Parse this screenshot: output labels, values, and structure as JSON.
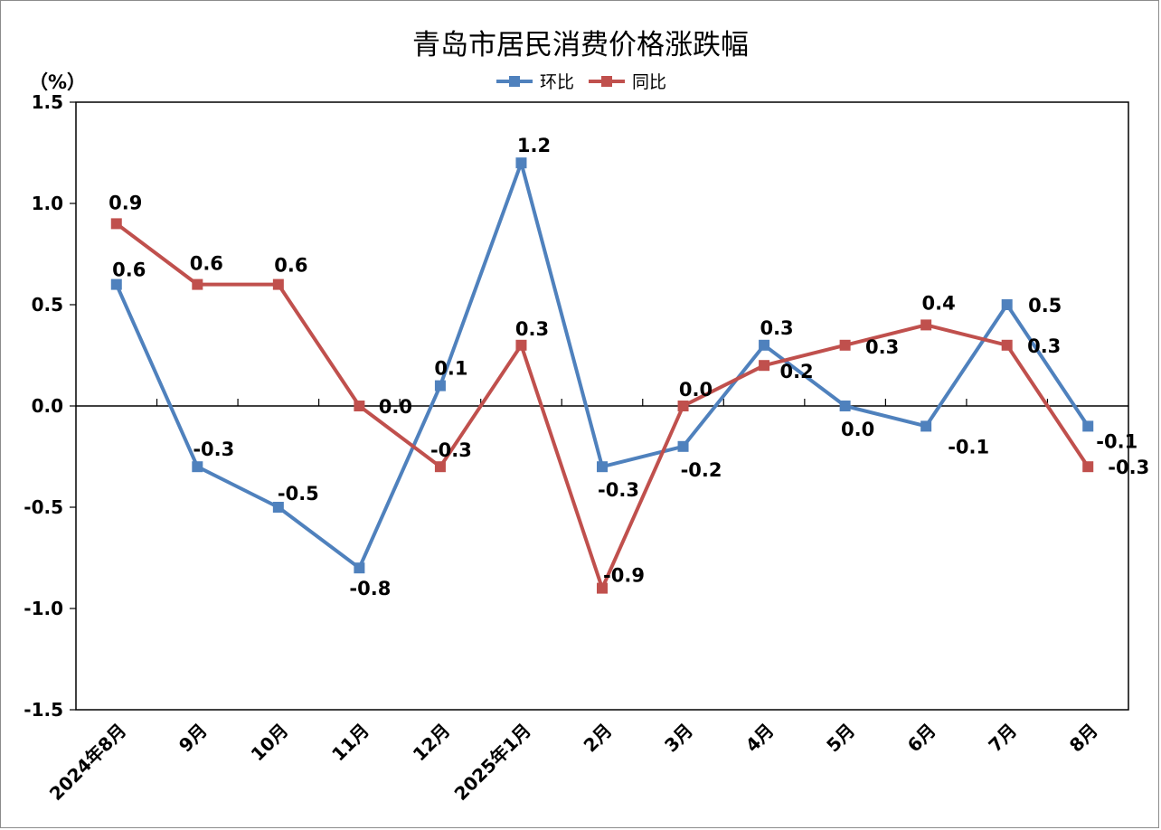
{
  "chart_data": {
    "type": "line",
    "title": "青岛市居民消费价格涨跌幅",
    "ylabel": "（%）",
    "categories": [
      "2024年8月",
      "9月",
      "10月",
      "11月",
      "12月",
      "2025年1月",
      "2月",
      "3月",
      "4月",
      "5月",
      "6月",
      "7月",
      "8月"
    ],
    "ylim": [
      -1.5,
      1.5
    ],
    "yticks": [
      1.5,
      1.0,
      0.5,
      0.0,
      -0.5,
      -1.0,
      -1.5
    ],
    "ytick_labels": [
      "1.5",
      "1.0",
      "0.5",
      "0.0",
      "-0.5",
      "-1.0",
      "-1.5"
    ],
    "legend_position": "top-center",
    "grid": false,
    "series": [
      {
        "name": "环比",
        "color": "#4f81bd",
        "marker": "square",
        "values": [
          0.6,
          -0.3,
          -0.5,
          -0.8,
          0.1,
          1.2,
          -0.3,
          -0.2,
          0.3,
          0.0,
          -0.1,
          0.5,
          -0.1
        ],
        "labels": [
          "0.6",
          "-0.3",
          "-0.5",
          "-0.8",
          "0.1",
          "1.2",
          "-0.3",
          "-0.2",
          "0.3",
          "0.0",
          "-0.1",
          "0.5",
          "-0.1"
        ]
      },
      {
        "name": "同比",
        "color": "#c0504d",
        "marker": "square",
        "values": [
          0.9,
          0.6,
          0.6,
          0.0,
          -0.3,
          0.3,
          -0.9,
          0.0,
          0.2,
          0.3,
          0.4,
          0.3,
          -0.3
        ],
        "labels": [
          "0.9",
          "0.6",
          "0.6",
          "0.0",
          "-0.3",
          "0.3",
          "-0.9",
          "0.0",
          "0.2",
          "0.3",
          "0.4",
          "0.3",
          "-0.3"
        ]
      }
    ]
  }
}
